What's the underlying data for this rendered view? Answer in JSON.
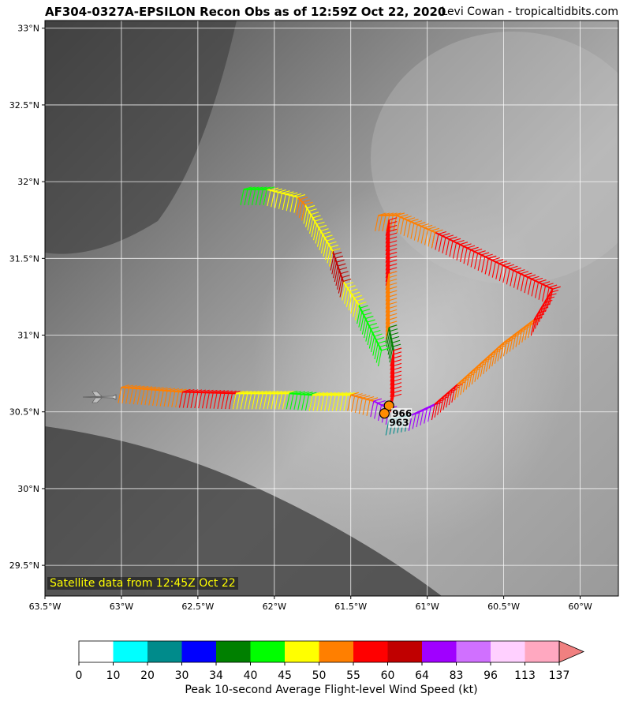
{
  "title": "AF304-0327A-EPSILON Recon Obs as of 12:59Z Oct 22, 2020",
  "credit": "Levi Cowan - tropicaltidbits.com",
  "satellite_note": "Satellite data from 12:45Z Oct 22",
  "map": {
    "lon_range": [
      -63.5,
      -59.75
    ],
    "lat_range": [
      29.3,
      33.05
    ],
    "lon_ticks": [
      -63.5,
      -63,
      -62.5,
      -62,
      -61.5,
      -61,
      -60.5,
      -60
    ],
    "lon_tick_labels": [
      "63.5°W",
      "63°W",
      "62.5°W",
      "62°W",
      "61.5°W",
      "61°W",
      "60.5°W",
      "60°W"
    ],
    "lat_ticks": [
      29.5,
      30,
      30.5,
      31,
      31.5,
      32,
      32.5,
      33
    ],
    "lat_tick_labels": [
      "29.5°N",
      "30°N",
      "30.5°N",
      "31°N",
      "31.5°N",
      "32°N",
      "32.5°N",
      "33°N"
    ],
    "grid": true,
    "pressure_obs": [
      {
        "lon": -61.25,
        "lat": 30.54,
        "label": "966"
      },
      {
        "lon": -61.28,
        "lat": 30.49,
        "label": "963"
      }
    ]
  },
  "colorbar": {
    "title": "Peak 10-second Average Flight-level Wind Speed (kt)",
    "boundaries": [
      "0",
      "10",
      "20",
      "30",
      "34",
      "40",
      "45",
      "50",
      "55",
      "60",
      "64",
      "83",
      "96",
      "113",
      "137"
    ],
    "colors": [
      "#ffffff",
      "#00ffff",
      "#008b8b",
      "#0000ff",
      "#008000",
      "#00ff00",
      "#ffff00",
      "#ff7f00",
      "#ff0000",
      "#c00000",
      "#a000ff",
      "#d070ff",
      "#ffd0ff",
      "#ffa8c0"
    ],
    "extend_color": "#f08080"
  },
  "flight_track": {
    "segments": [
      {
        "lon": [
          -63.0,
          -62.6
        ],
        "lat": [
          30.66,
          30.63
        ],
        "wind_kt": 52
      },
      {
        "lon": [
          -62.6,
          -62.25
        ],
        "lat": [
          30.63,
          30.62
        ],
        "wind_kt": 57
      },
      {
        "lon": [
          -62.25,
          -61.9
        ],
        "lat": [
          30.62,
          30.62
        ],
        "wind_kt": 47
      },
      {
        "lon": [
          -61.9,
          -61.75
        ],
        "lat": [
          30.62,
          30.61
        ],
        "wind_kt": 42
      },
      {
        "lon": [
          -61.75,
          -61.5
        ],
        "lat": [
          30.61,
          30.61
        ],
        "wind_kt": 47
      },
      {
        "lon": [
          -61.5,
          -61.35
        ],
        "lat": [
          30.61,
          30.57
        ],
        "wind_kt": 52
      },
      {
        "lon": [
          -61.35,
          -61.25
        ],
        "lat": [
          30.57,
          30.52
        ],
        "wind_kt": 66
      },
      {
        "lon": [
          -61.25,
          -61.1
        ],
        "lat": [
          30.45,
          30.48
        ],
        "wind_kt": 25
      },
      {
        "lon": [
          -61.1,
          -60.95
        ],
        "lat": [
          30.48,
          30.55
        ],
        "wind_kt": 70
      },
      {
        "lon": [
          -60.95,
          -60.8
        ],
        "lat": [
          30.55,
          30.68
        ],
        "wind_kt": 57
      },
      {
        "lon": [
          -60.8,
          -60.5
        ],
        "lat": [
          30.68,
          30.95
        ],
        "wind_kt": 52
      },
      {
        "lon": [
          -60.5,
          -60.3
        ],
        "lat": [
          30.95,
          31.1
        ],
        "wind_kt": 52
      },
      {
        "lon": [
          -60.3,
          -60.18
        ],
        "lat": [
          31.1,
          31.3
        ],
        "wind_kt": 57
      },
      {
        "lon": [
          -60.18,
          -60.6
        ],
        "lat": [
          31.3,
          31.5
        ],
        "wind_kt": 57
      },
      {
        "lon": [
          -60.6,
          -60.95
        ],
        "lat": [
          31.5,
          31.67
        ],
        "wind_kt": 57
      },
      {
        "lon": [
          -60.95,
          -61.2
        ],
        "lat": [
          31.67,
          31.78
        ],
        "wind_kt": 52
      },
      {
        "lon": [
          -61.2,
          -61.32
        ],
        "lat": [
          31.78,
          31.78
        ],
        "wind_kt": 52
      },
      {
        "lon": [
          -61.25,
          -61.25
        ],
        "lat": [
          31.75,
          31.4
        ],
        "wind_kt": 57
      },
      {
        "lon": [
          -61.25,
          -61.25
        ],
        "lat": [
          31.4,
          31.05
        ],
        "wind_kt": 52
      },
      {
        "lon": [
          -61.25,
          -61.22
        ],
        "lat": [
          31.05,
          30.9
        ],
        "wind_kt": 37
      },
      {
        "lon": [
          -61.22,
          -61.22
        ],
        "lat": [
          30.9,
          30.6
        ],
        "wind_kt": 57
      },
      {
        "lon": [
          -61.3,
          -61.45
        ],
        "lat": [
          30.9,
          31.2
        ],
        "wind_kt": 42
      },
      {
        "lon": [
          -61.45,
          -61.55
        ],
        "lat": [
          31.2,
          31.35
        ],
        "wind_kt": 47
      },
      {
        "lon": [
          -61.55,
          -61.62
        ],
        "lat": [
          31.35,
          31.55
        ],
        "wind_kt": 62
      },
      {
        "lon": [
          -61.62,
          -61.8
        ],
        "lat": [
          31.55,
          31.85
        ],
        "wind_kt": 47
      },
      {
        "lon": [
          -61.8,
          -61.85
        ],
        "lat": [
          31.85,
          31.9
        ],
        "wind_kt": 52
      },
      {
        "lon": [
          -61.85,
          -62.05
        ],
        "lat": [
          31.9,
          31.95
        ],
        "wind_kt": 47
      },
      {
        "lon": [
          -62.05,
          -62.2
        ],
        "lat": [
          31.95,
          31.95
        ],
        "wind_kt": 42
      }
    ]
  }
}
